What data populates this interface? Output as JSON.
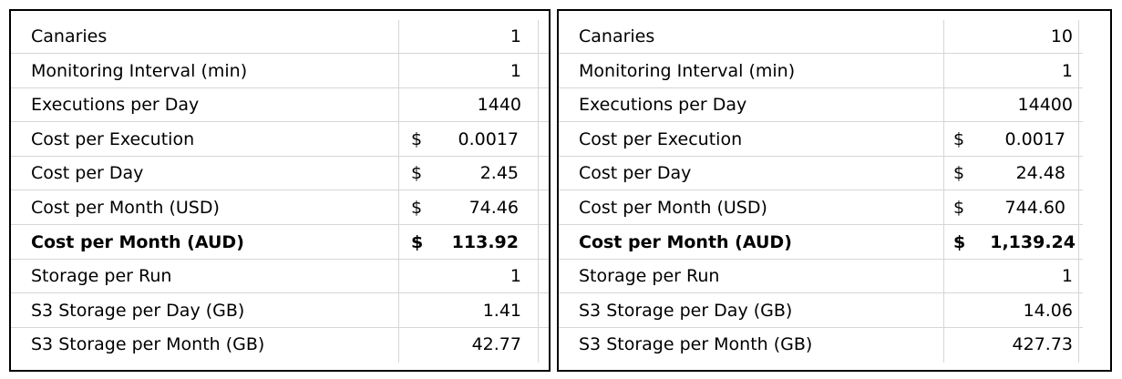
{
  "left_table": {
    "rows": [
      {
        "label": "Canaries",
        "value": "1"
      },
      {
        "label": "Monitoring Interval (min)",
        "value": "1"
      },
      {
        "label": "Executions per Day",
        "value": "1440"
      },
      {
        "label": "Cost per Execution",
        "currency": "$",
        "value": "0.0017"
      },
      {
        "label": "Cost per Day",
        "currency": "$",
        "value": "2.45"
      },
      {
        "label": "Cost per Month (USD)",
        "currency": "$",
        "value": "74.46"
      },
      {
        "label": "Cost per Month (AUD)",
        "currency": "$",
        "value": "113.92"
      },
      {
        "label": "Storage per Run",
        "value": "1"
      },
      {
        "label": "S3 Storage per Day (GB)",
        "value": "1.41"
      },
      {
        "label": "S3 Storage per Month (GB)",
        "value": "42.77"
      }
    ]
  },
  "right_table": {
    "rows": [
      {
        "label": "Canaries",
        "value": "10"
      },
      {
        "label": "Monitoring Interval (min)",
        "value": "1"
      },
      {
        "label": "Executions per Day",
        "value": "14400"
      },
      {
        "label": "Cost per Execution",
        "currency": "$",
        "value": "0.0017"
      },
      {
        "label": "Cost per Day",
        "currency": "$",
        "value": "24.48"
      },
      {
        "label": "Cost per Month (USD)",
        "currency": "$",
        "value": "744.60"
      },
      {
        "label": "Cost per Month (AUD)",
        "currency": "$",
        "value": "1,139.24"
      },
      {
        "label": "Storage per Run",
        "value": "1"
      },
      {
        "label": "S3 Storage per Day (GB)",
        "value": "14.06"
      },
      {
        "label": "S3 Storage per Month (GB)",
        "value": "427.73"
      }
    ]
  }
}
